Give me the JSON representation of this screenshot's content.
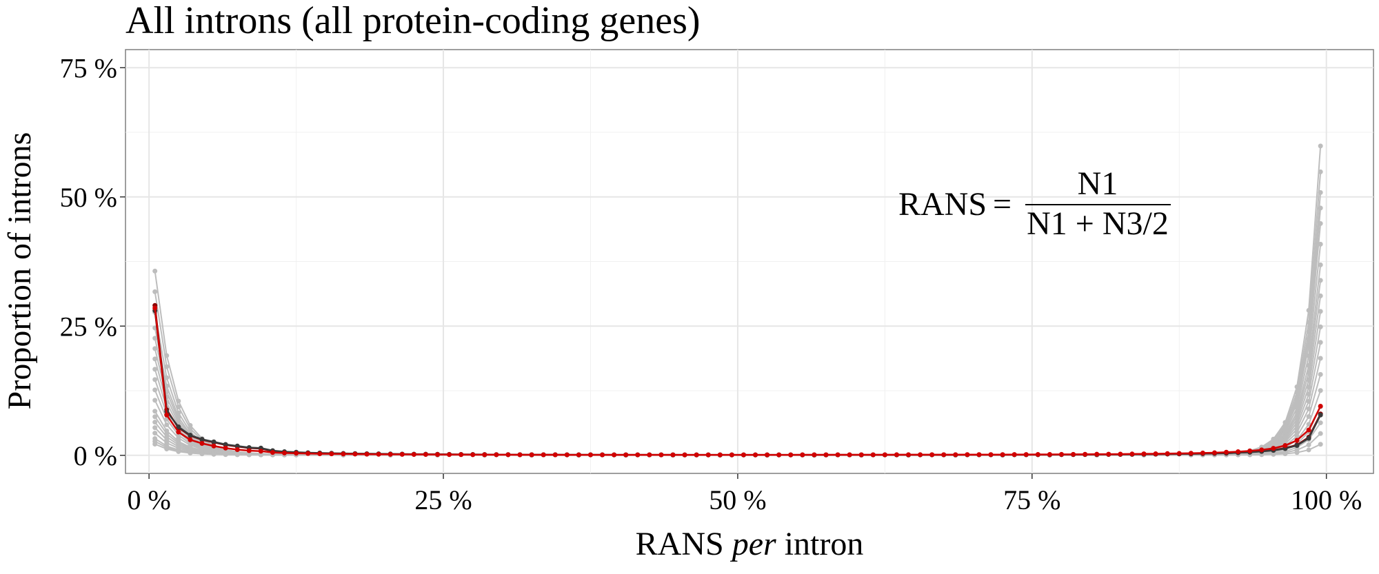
{
  "chart_data": {
    "type": "line",
    "title": "All introns (all protein-coding genes)",
    "xlabel": {
      "prefix": "RANS ",
      "italic": "per",
      "suffix": " intron"
    },
    "ylabel": "Proportion of introns",
    "xlim": [
      -2,
      104
    ],
    "ylim": [
      -3.5,
      78.5
    ],
    "x_ticks": [
      0,
      25,
      50,
      75,
      100
    ],
    "x_tick_labels": [
      "0 %",
      "25 %",
      "50 %",
      "75 %",
      "100 %"
    ],
    "y_ticks": [
      0,
      25,
      50,
      75
    ],
    "y_tick_labels": [
      "0 %",
      "25 %",
      "50 %",
      "75 %"
    ],
    "x_minor_ticks": [
      12.5,
      37.5,
      62.5,
      87.5
    ],
    "y_minor_ticks": [
      12.5,
      37.5,
      62.5
    ],
    "grid": true,
    "formula": {
      "lhs": "RANS",
      "eq": "=",
      "numerator": "N1",
      "denominator": "N1 + N3/2"
    },
    "x": [
      0.5,
      1.5,
      2.5,
      3.5,
      4.5,
      5.5,
      6.5,
      7.5,
      8.5,
      9.5,
      10.5,
      11.5,
      12.5,
      13.5,
      14.5,
      15.5,
      16.5,
      17.5,
      18.5,
      19.5,
      20.5,
      21.5,
      22.5,
      23.5,
      24.5,
      25.5,
      26.5,
      27.5,
      28.5,
      29.5,
      30.5,
      31.5,
      32.5,
      33.5,
      34.5,
      35.5,
      36.5,
      37.5,
      38.5,
      39.5,
      40.5,
      41.5,
      42.5,
      43.5,
      44.5,
      45.5,
      46.5,
      47.5,
      48.5,
      49.5,
      50.5,
      51.5,
      52.5,
      53.5,
      54.5,
      55.5,
      56.5,
      57.5,
      58.5,
      59.5,
      60.5,
      61.5,
      62.5,
      63.5,
      64.5,
      65.5,
      66.5,
      67.5,
      68.5,
      69.5,
      70.5,
      71.5,
      72.5,
      73.5,
      74.5,
      75.5,
      76.5,
      77.5,
      78.5,
      79.5,
      80.5,
      81.5,
      82.5,
      83.5,
      84.5,
      85.5,
      86.5,
      87.5,
      88.5,
      89.5,
      90.5,
      91.5,
      92.5,
      93.5,
      94.5,
      95.5,
      96.5,
      97.5,
      98.5,
      99.5
    ],
    "series": [
      {
        "color": "#8b0000",
        "values": [
          29.0,
          8.8,
          5.3,
          3.8,
          3.0,
          2.5,
          2.0,
          1.7,
          1.4,
          1.3,
          0.8,
          0.6,
          0.5,
          0.45,
          0.4,
          0.35,
          0.32,
          0.3,
          0.28,
          0.26,
          0.24,
          0.22,
          0.2,
          0.2,
          0.18,
          0.16,
          0.15,
          0.14,
          0.13,
          0.12,
          0.12,
          0.11,
          0.1,
          0.1,
          0.1,
          0.09,
          0.09,
          0.09,
          0.08,
          0.08,
          0.08,
          0.08,
          0.08,
          0.08,
          0.08,
          0.07,
          0.07,
          0.07,
          0.07,
          0.07,
          0.07,
          0.07,
          0.07,
          0.07,
          0.07,
          0.07,
          0.07,
          0.07,
          0.08,
          0.08,
          0.08,
          0.08,
          0.08,
          0.08,
          0.08,
          0.09,
          0.09,
          0.09,
          0.1,
          0.1,
          0.1,
          0.1,
          0.1,
          0.11,
          0.11,
          0.12,
          0.12,
          0.13,
          0.13,
          0.14,
          0.15,
          0.16,
          0.17,
          0.18,
          0.2,
          0.22,
          0.24,
          0.26,
          0.28,
          0.32,
          0.36,
          0.4,
          0.5,
          0.6,
          0.8,
          1.0,
          1.4,
          2.0,
          3.5,
          8.0
        ]
      },
      {
        "color": "#3a3a3a",
        "values": [
          28.0,
          8.5,
          5.5,
          3.9,
          3.1,
          2.6,
          2.1,
          1.8,
          1.5,
          1.4,
          0.9,
          0.7,
          0.6,
          0.5,
          0.45,
          0.4,
          0.36,
          0.33,
          0.3,
          0.28,
          0.26,
          0.24,
          0.22,
          0.21,
          0.2,
          0.18,
          0.17,
          0.16,
          0.15,
          0.14,
          0.13,
          0.12,
          0.12,
          0.11,
          0.11,
          0.1,
          0.1,
          0.1,
          0.1,
          0.09,
          0.09,
          0.09,
          0.09,
          0.09,
          0.09,
          0.09,
          0.09,
          0.09,
          0.09,
          0.09,
          0.09,
          0.09,
          0.09,
          0.09,
          0.09,
          0.09,
          0.09,
          0.09,
          0.09,
          0.09,
          0.09,
          0.09,
          0.09,
          0.09,
          0.1,
          0.1,
          0.1,
          0.1,
          0.1,
          0.11,
          0.11,
          0.11,
          0.12,
          0.12,
          0.12,
          0.13,
          0.13,
          0.14,
          0.15,
          0.16,
          0.17,
          0.18,
          0.19,
          0.2,
          0.22,
          0.24,
          0.26,
          0.28,
          0.3,
          0.34,
          0.38,
          0.42,
          0.5,
          0.6,
          0.75,
          0.95,
          1.3,
          1.9,
          3.3,
          7.8
        ]
      },
      {
        "color": "#d10000",
        "values": [
          28.5,
          7.8,
          4.5,
          3.0,
          2.3,
          1.8,
          1.4,
          1.1,
          0.9,
          0.8,
          0.55,
          0.45,
          0.4,
          0.35,
          0.3,
          0.28,
          0.26,
          0.24,
          0.22,
          0.2,
          0.19,
          0.18,
          0.17,
          0.16,
          0.15,
          0.14,
          0.13,
          0.12,
          0.12,
          0.11,
          0.11,
          0.1,
          0.1,
          0.1,
          0.1,
          0.09,
          0.09,
          0.09,
          0.09,
          0.09,
          0.09,
          0.09,
          0.09,
          0.09,
          0.09,
          0.09,
          0.09,
          0.09,
          0.09,
          0.09,
          0.09,
          0.09,
          0.09,
          0.09,
          0.09,
          0.1,
          0.1,
          0.1,
          0.1,
          0.1,
          0.1,
          0.1,
          0.1,
          0.11,
          0.11,
          0.11,
          0.12,
          0.12,
          0.12,
          0.13,
          0.13,
          0.14,
          0.14,
          0.15,
          0.15,
          0.16,
          0.17,
          0.18,
          0.19,
          0.2,
          0.21,
          0.22,
          0.24,
          0.26,
          0.28,
          0.3,
          0.33,
          0.36,
          0.4,
          0.45,
          0.5,
          0.6,
          0.7,
          0.85,
          1.05,
          1.35,
          1.9,
          2.9,
          4.9,
          9.5
        ]
      }
    ],
    "background_lines": {
      "color": "#bdbdbd",
      "description_values_note": "many grey per-species lines spanning the same x values",
      "start_values": [
        35.0,
        31.0,
        27.0,
        24.0,
        22.0,
        20.0,
        18.0,
        16.0,
        14.0,
        12.0,
        10.0,
        8.0,
        7.0,
        6.0,
        5.0,
        4.0,
        3.0,
        2.5,
        2.0
      ],
      "end_values": [
        59.0,
        54.0,
        50.0,
        47.0,
        44.0,
        40.0,
        36.0,
        33.0,
        30.0,
        27.0,
        24.0,
        21.0,
        18.0,
        15.0,
        12.0,
        9.0,
        6.0,
        4.0,
        2.0
      ]
    }
  }
}
